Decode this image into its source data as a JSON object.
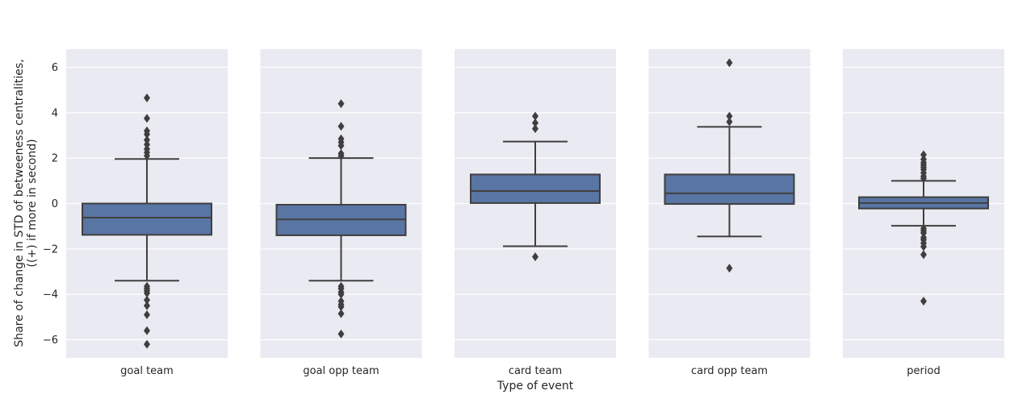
{
  "chart_data": {
    "type": "boxplot",
    "xlabel": "Type of event",
    "ylabel_lines": [
      "Share of change in STD of betweeness centralities,",
      "((+) if more in second)"
    ],
    "ylim": [
      -6.8,
      6.8
    ],
    "yticks": [
      -6,
      -4,
      -2,
      0,
      2,
      4,
      6
    ],
    "ytick_labels": [
      "−6",
      "−4",
      "−2",
      "0",
      "2",
      "4",
      "6"
    ],
    "box_color": "#5975a4",
    "line_color": "#3f3f3f",
    "background_color": "#eaeaf2",
    "grid": true,
    "categories": [
      "goal team",
      "goal opp team",
      "card team",
      "card opp team",
      "period"
    ],
    "boxes": [
      {
        "category": "goal team",
        "whisker_low": -3.4,
        "q1": -1.38,
        "median": -0.62,
        "q3": 0.0,
        "whisker_high": 1.96,
        "fliers": [
          4.65,
          3.75,
          3.2,
          3.05,
          2.8,
          2.6,
          2.4,
          2.25,
          2.1,
          -3.65,
          -3.75,
          -3.85,
          -3.95,
          -4.25,
          -4.5,
          -4.9,
          -5.6,
          -6.2
        ]
      },
      {
        "category": "goal opp team",
        "whisker_low": -3.4,
        "q1": -1.4,
        "median": -0.7,
        "q3": -0.05,
        "whisker_high": 2.0,
        "fliers": [
          4.4,
          3.4,
          2.85,
          2.7,
          2.55,
          2.2,
          2.1,
          -3.65,
          -3.75,
          -3.9,
          -4.0,
          -4.3,
          -4.45,
          -4.55,
          -4.85,
          -5.75
        ]
      },
      {
        "category": "card team",
        "whisker_low": -1.88,
        "q1": 0.02,
        "median": 0.55,
        "q3": 1.28,
        "whisker_high": 2.73,
        "fliers": [
          3.85,
          3.55,
          3.3,
          -2.35
        ]
      },
      {
        "category": "card opp team",
        "whisker_low": -1.45,
        "q1": -0.02,
        "median": 0.45,
        "q3": 1.28,
        "whisker_high": 3.38,
        "fliers": [
          6.2,
          3.85,
          3.6,
          -2.85
        ]
      },
      {
        "category": "period",
        "whisker_low": -0.98,
        "q1": -0.22,
        "median": 0.02,
        "q3": 0.28,
        "whisker_high": 1.0,
        "fliers": [
          2.15,
          1.95,
          1.8,
          1.7,
          1.6,
          1.5,
          1.35,
          1.2,
          1.1,
          -1.1,
          -1.2,
          -1.3,
          -1.5,
          -1.6,
          -1.75,
          -1.9,
          -2.25,
          -4.3
        ]
      }
    ]
  }
}
